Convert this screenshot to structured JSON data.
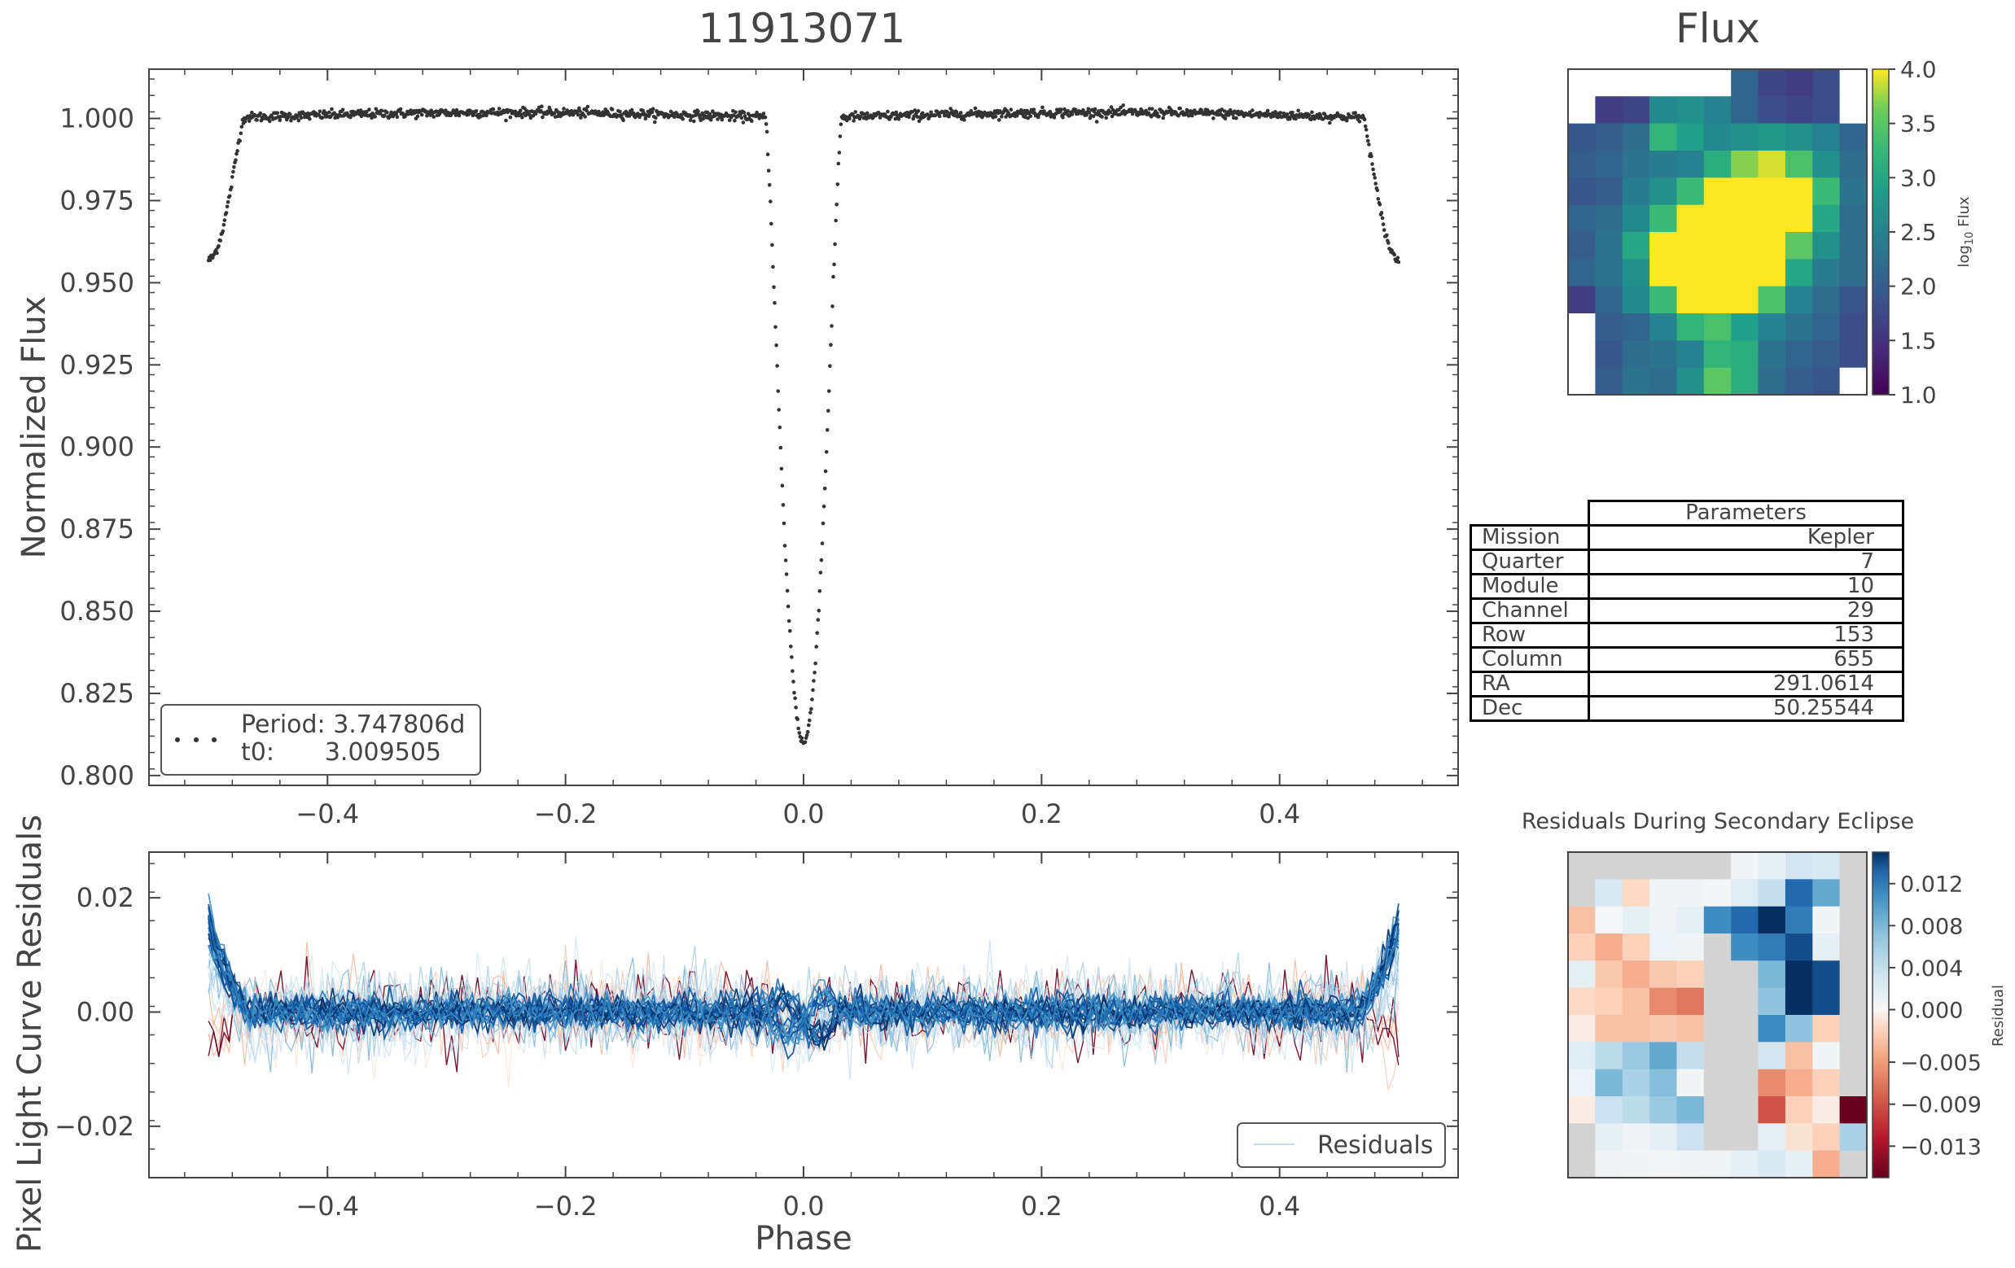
{
  "figure_title": "11913071",
  "flux_title": "Flux",
  "colors": {
    "text": "#444444",
    "points": "#333333",
    "frame": "#444444"
  },
  "params": {
    "header": "Parameters",
    "rows": [
      {
        "label": "Mission",
        "value": "Kepler"
      },
      {
        "label": "Quarter",
        "value": "7"
      },
      {
        "label": "Module",
        "value": "10"
      },
      {
        "label": "Channel",
        "value": "29"
      },
      {
        "label": "Row",
        "value": "153"
      },
      {
        "label": "Column",
        "value": "655"
      },
      {
        "label": "RA",
        "value": "291.0614"
      },
      {
        "label": "Dec",
        "value": "50.25544"
      }
    ]
  },
  "chart_data": [
    {
      "type": "scatter",
      "title": "11913071",
      "ylabel": "Normalized Flux",
      "xlim": [
        -0.55,
        0.55
      ],
      "ylim": [
        0.797,
        1.015
      ],
      "xticks": [
        -0.4,
        -0.2,
        0.0,
        0.2,
        0.4
      ],
      "xtick_labels": [
        "−0.4",
        "−0.2",
        "0.0",
        "0.2",
        "0.4"
      ],
      "yticks": [
        0.8,
        0.825,
        0.85,
        0.875,
        0.9,
        0.925,
        0.95,
        0.975,
        1.0
      ],
      "ytick_labels": [
        "0.800",
        "0.825",
        "0.850",
        "0.875",
        "0.900",
        "0.925",
        "0.950",
        "0.975",
        "1.000"
      ],
      "legend": {
        "position": "bottom-left",
        "line1": "Period: 3.747806d",
        "line2_key": "t0:",
        "line2_value": "3.009505"
      },
      "model": {
        "phase_range": [
          -0.5,
          0.5
        ],
        "baseline": 1.0,
        "oot_curve_amplitude": 0.003,
        "primary_center": 0.0,
        "primary_depth": 0.19,
        "primary_halfwidth": 0.032,
        "secondary_center": 0.5,
        "secondary_depth": 0.043,
        "secondary_halfwidth": 0.03
      }
    },
    {
      "type": "line",
      "xlabel": "Phase",
      "ylabel": "Pixel Light Curve Residuals",
      "xlim": [
        -0.55,
        0.55
      ],
      "ylim": [
        -0.029,
        0.028
      ],
      "xticks": [
        -0.4,
        -0.2,
        0.0,
        0.2,
        0.4
      ],
      "xtick_labels": [
        "−0.4",
        "−0.2",
        "0.0",
        "0.2",
        "0.4"
      ],
      "yticks": [
        -0.02,
        0.0,
        0.02
      ],
      "ytick_labels": [
        "−0.02",
        "0.00",
        "0.02"
      ],
      "legend": {
        "position": "bottom-right",
        "label": "Residuals"
      },
      "series_description": "many per-pixel residual light curves colored by RdBu colormap",
      "series_count": 42,
      "series_approx": {
        "edge_amplitude": 0.016,
        "primary_dip": -0.006,
        "noise": 0.003
      }
    },
    {
      "type": "heatmap",
      "title": "Flux",
      "colorbar_label": "log10 Flux",
      "colorbar_ticks": [
        "1.0",
        "1.5",
        "2.0",
        "2.5",
        "3.0",
        "3.5",
        "4.0"
      ],
      "vmin": 1.0,
      "vmax": 4.0,
      "colormap": "viridis",
      "rows": 12,
      "cols": 11,
      "values": [
        [
          null,
          null,
          null,
          null,
          null,
          null,
          2.1,
          1.7,
          1.6,
          1.8,
          null
        ],
        [
          null,
          1.6,
          1.7,
          2.6,
          2.7,
          2.5,
          2.1,
          1.8,
          1.7,
          1.8,
          null
        ],
        [
          1.9,
          2.0,
          2.2,
          3.2,
          2.9,
          2.6,
          2.7,
          2.8,
          2.7,
          2.5,
          2.1
        ],
        [
          2.0,
          2.1,
          2.3,
          2.4,
          2.5,
          3.1,
          3.7,
          3.9,
          3.4,
          2.7,
          2.2
        ],
        [
          1.9,
          2.0,
          2.4,
          2.7,
          3.3,
          4.0,
          4.0,
          4.0,
          4.0,
          3.3,
          2.3
        ],
        [
          2.1,
          2.2,
          2.6,
          3.3,
          4.0,
          4.0,
          4.0,
          4.0,
          4.0,
          3.0,
          2.2
        ],
        [
          2.0,
          2.3,
          3.0,
          4.0,
          4.0,
          4.0,
          4.0,
          4.0,
          3.5,
          2.7,
          2.2
        ],
        [
          2.1,
          2.3,
          2.7,
          4.0,
          4.0,
          4.0,
          4.0,
          4.0,
          3.0,
          2.4,
          2.2
        ],
        [
          1.6,
          2.1,
          2.6,
          3.3,
          4.0,
          4.0,
          4.0,
          3.4,
          2.5,
          2.2,
          1.9
        ],
        [
          null,
          2.0,
          2.1,
          2.5,
          3.2,
          3.4,
          2.9,
          2.5,
          2.3,
          2.1,
          1.8
        ],
        [
          null,
          1.9,
          2.2,
          2.3,
          2.5,
          3.2,
          3.1,
          2.3,
          2.1,
          2.0,
          1.8
        ],
        [
          null,
          2.0,
          2.3,
          2.2,
          2.7,
          3.5,
          3.1,
          2.2,
          2.0,
          1.9,
          null
        ]
      ]
    },
    {
      "type": "heatmap",
      "title": "Residuals During Secondary Eclipse",
      "colorbar_label": "Residual",
      "colorbar_ticks": [
        "0.012",
        "0.008",
        "0.004",
        "0.000",
        "−0.005",
        "−0.009",
        "−0.013"
      ],
      "colorbar_tick_values": [
        0.012,
        0.008,
        0.004,
        0.0,
        -0.005,
        -0.009,
        -0.013
      ],
      "vmin": -0.016,
      "vmax": 0.015,
      "colormap": "RdBu",
      "rows": 12,
      "cols": 11,
      "values": [
        [
          null,
          null,
          null,
          null,
          null,
          null,
          0.0005,
          0.0015,
          0.003,
          0.0025,
          null
        ],
        [
          null,
          0.0025,
          -0.0015,
          0.0006,
          0.0008,
          0.0004,
          0.002,
          0.004,
          0.013,
          0.009,
          null
        ],
        [
          -0.003,
          0.0003,
          0.0015,
          0.0008,
          0.0015,
          0.011,
          0.013,
          0.015,
          0.012,
          0.0005,
          null
        ],
        [
          -0.002,
          -0.004,
          -0.002,
          0.001,
          0.0008,
          null,
          0.011,
          0.012,
          0.014,
          0.0015,
          null
        ],
        [
          0.0015,
          -0.0025,
          -0.004,
          -0.0025,
          -0.002,
          null,
          null,
          0.008,
          0.015,
          0.014,
          null
        ],
        [
          -0.0015,
          -0.002,
          -0.003,
          -0.006,
          -0.007,
          null,
          null,
          0.007,
          0.015,
          0.014,
          null
        ],
        [
          -0.0005,
          -0.003,
          -0.003,
          -0.0025,
          -0.003,
          null,
          null,
          0.011,
          0.007,
          -0.002,
          null
        ],
        [
          0.002,
          0.0045,
          0.0065,
          0.009,
          0.004,
          null,
          null,
          0.003,
          -0.003,
          0.0005,
          null
        ],
        [
          0.001,
          0.008,
          0.0055,
          0.0075,
          0.0005,
          null,
          null,
          -0.006,
          -0.004,
          -0.002,
          null
        ],
        [
          -0.0005,
          0.0035,
          0.0045,
          0.0065,
          0.008,
          null,
          null,
          -0.009,
          -0.002,
          -0.0005,
          -0.016
        ],
        [
          null,
          0.0015,
          0.0008,
          0.0015,
          0.0035,
          null,
          null,
          0.0015,
          -0.001,
          -0.002,
          0.0055
        ],
        [
          null,
          0.0008,
          0.0005,
          0.0004,
          0.0005,
          0.0006,
          0.0015,
          0.0025,
          0.0015,
          -0.004,
          null
        ]
      ]
    }
  ]
}
